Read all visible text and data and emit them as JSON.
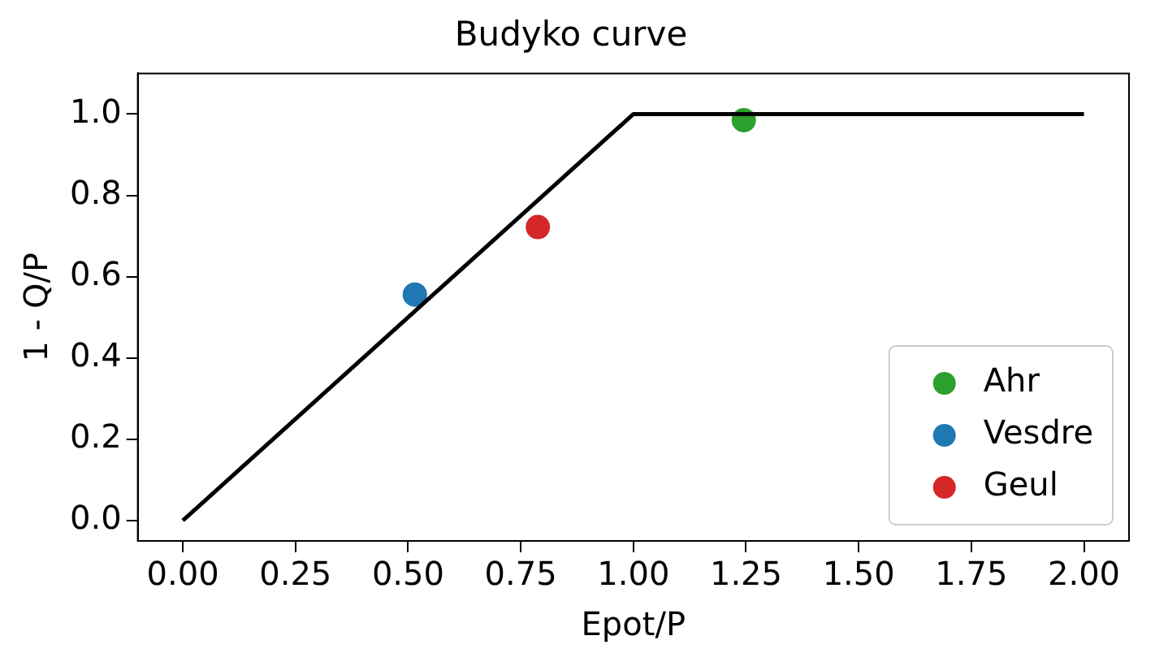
{
  "chart_data": {
    "type": "scatter",
    "title": "Budyko curve",
    "xlabel": "Epot/P",
    "ylabel": "1 - Q/P",
    "xlim": [
      -0.1,
      2.1
    ],
    "xticks": [
      {
        "value": 0,
        "label": "0.00"
      },
      {
        "value": 0.25,
        "label": "0.25"
      },
      {
        "value": 0.5,
        "label": "0.50"
      },
      {
        "value": 0.75,
        "label": "0.75"
      },
      {
        "value": 1,
        "label": "1.00"
      },
      {
        "value": 1.25,
        "label": "1.25"
      },
      {
        "value": 1.5,
        "label": "1.50"
      },
      {
        "value": 1.75,
        "label": "1.75"
      },
      {
        "value": 2,
        "label": "2.00"
      }
    ],
    "ylim": [
      -0.05,
      1.1
    ],
    "yticks": [
      {
        "value": 0,
        "label": "0.0"
      },
      {
        "value": 0.2,
        "label": "0.2"
      },
      {
        "value": 0.4,
        "label": "0.4"
      },
      {
        "value": 0.6,
        "label": "0.6"
      },
      {
        "value": 0.8,
        "label": "0.8"
      },
      {
        "value": 1,
        "label": "1.0"
      }
    ],
    "grid": false,
    "legend": "bottom right",
    "marker": "circle",
    "series": [
      {
        "type": "line",
        "color": "#000000",
        "x": [
          0,
          1,
          2
        ],
        "values": [
          0,
          1,
          1
        ],
        "marker": "none",
        "line_style": "solid"
      },
      {
        "name": "Ahr",
        "color": "#2ca02c",
        "x": [
          1.245
        ],
        "values": [
          0.985
        ]
      },
      {
        "name": "Vesdre",
        "color": "#1f77b4",
        "x": [
          0.515
        ],
        "values": [
          0.556
        ]
      },
      {
        "name": "Geul",
        "color": "#d62728",
        "x": [
          0.788
        ],
        "values": [
          0.722
        ]
      }
    ]
  }
}
